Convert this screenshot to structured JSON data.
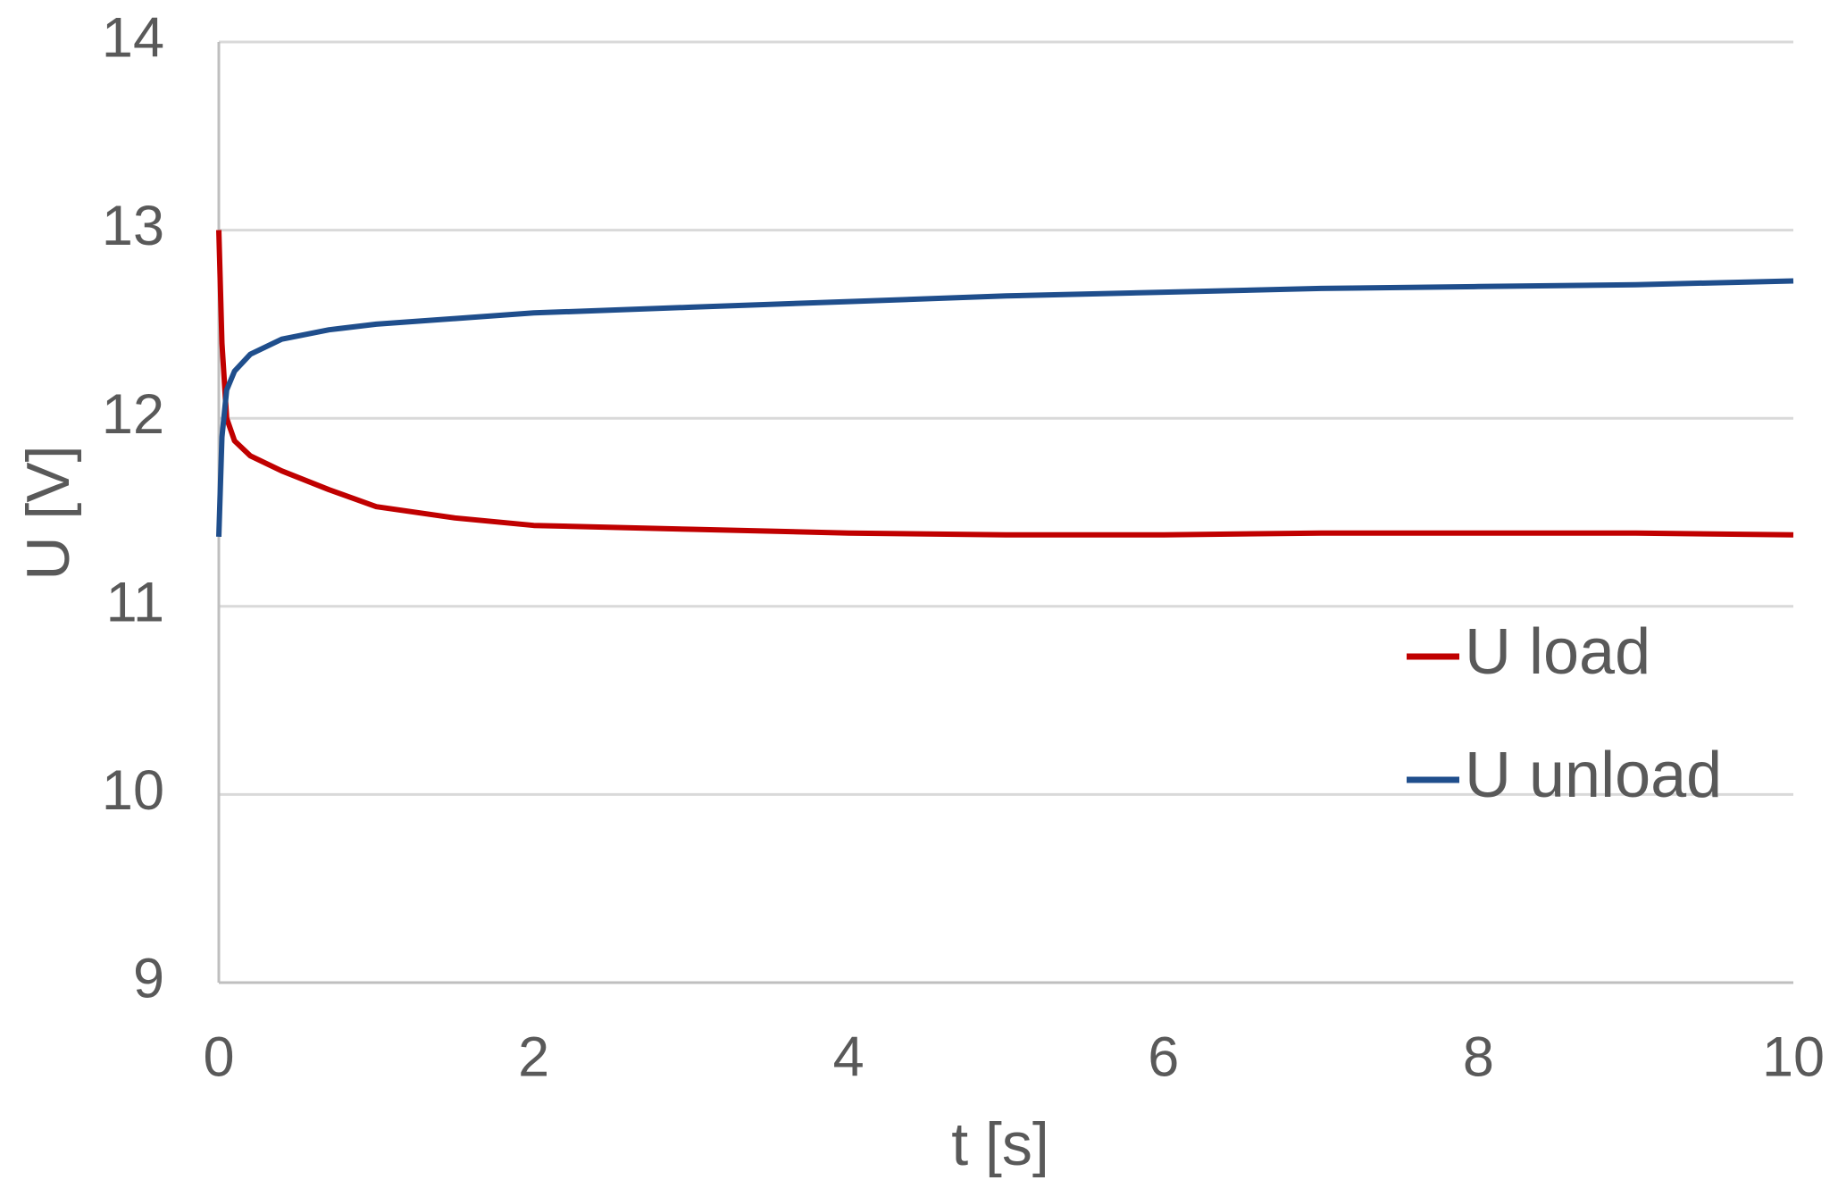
{
  "chart_data": {
    "type": "line",
    "xlabel": "t [s]",
    "ylabel": "U [V]",
    "x": [
      0,
      0.02,
      0.05,
      0.1,
      0.2,
      0.4,
      0.7,
      1,
      1.5,
      2,
      3,
      4,
      5,
      6,
      7,
      8,
      9,
      10
    ],
    "series": [
      {
        "name": "U load",
        "color": "#c00000",
        "values": [
          13,
          12.4,
          12.0,
          11.88,
          11.8,
          11.72,
          11.62,
          11.53,
          11.47,
          11.43,
          11.41,
          11.39,
          11.38,
          11.38,
          11.39,
          11.39,
          11.39,
          11.38
        ]
      },
      {
        "name": "U unload",
        "color": "#1f4e8c",
        "values": [
          11.37,
          11.9,
          12.15,
          12.25,
          12.34,
          12.42,
          12.47,
          12.5,
          12.53,
          12.56,
          12.59,
          12.62,
          12.65,
          12.67,
          12.69,
          12.7,
          12.71,
          12.73
        ]
      }
    ],
    "xlim": [
      0,
      10
    ],
    "xticks": [
      0,
      2,
      4,
      6,
      8,
      10
    ],
    "ylim": [
      9,
      14
    ],
    "yticks": [
      9,
      10,
      11,
      12,
      13,
      14
    ],
    "grid": true,
    "legend": "right"
  }
}
